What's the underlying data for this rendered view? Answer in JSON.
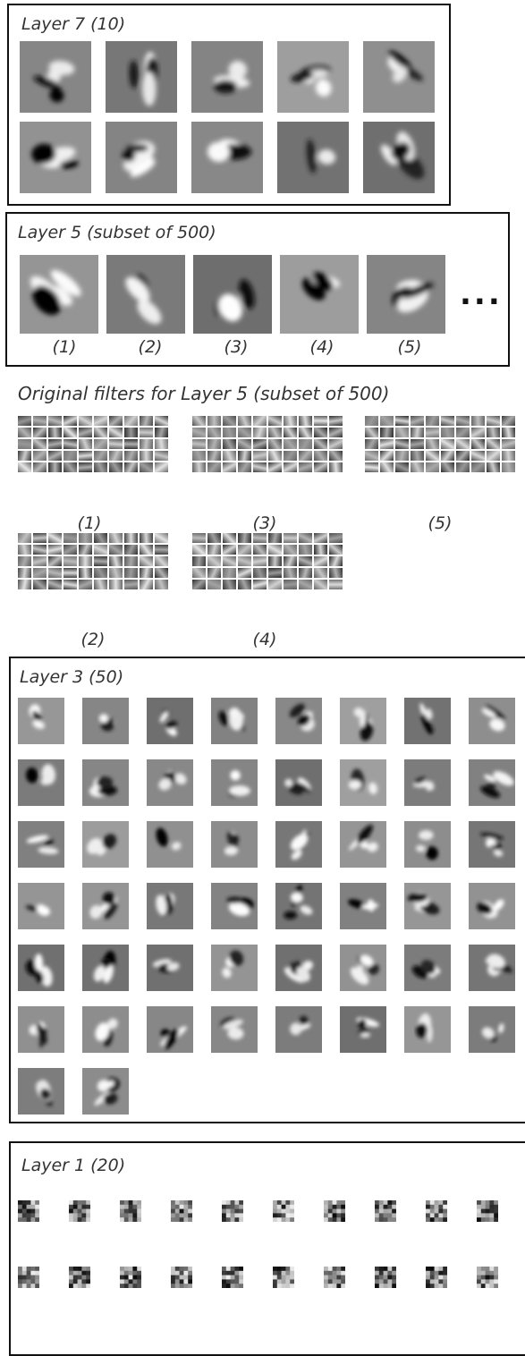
{
  "layer7": {
    "title": "Layer 7 (10)"
  },
  "layer5": {
    "title": "Layer 5 (subset of 500)",
    "captions": [
      "(1)",
      "(2)",
      "(3)",
      "(4)",
      "(5)"
    ],
    "ellipsis": "..."
  },
  "original": {
    "title": "Original filters for Layer 5 (subset of 500)",
    "captions": [
      "(1)",
      "(3)",
      "(5)",
      "(2)",
      "(4)"
    ]
  },
  "layer3": {
    "title": "Layer 3  (50)"
  },
  "layer1": {
    "title": "Layer 1 (20)"
  }
}
